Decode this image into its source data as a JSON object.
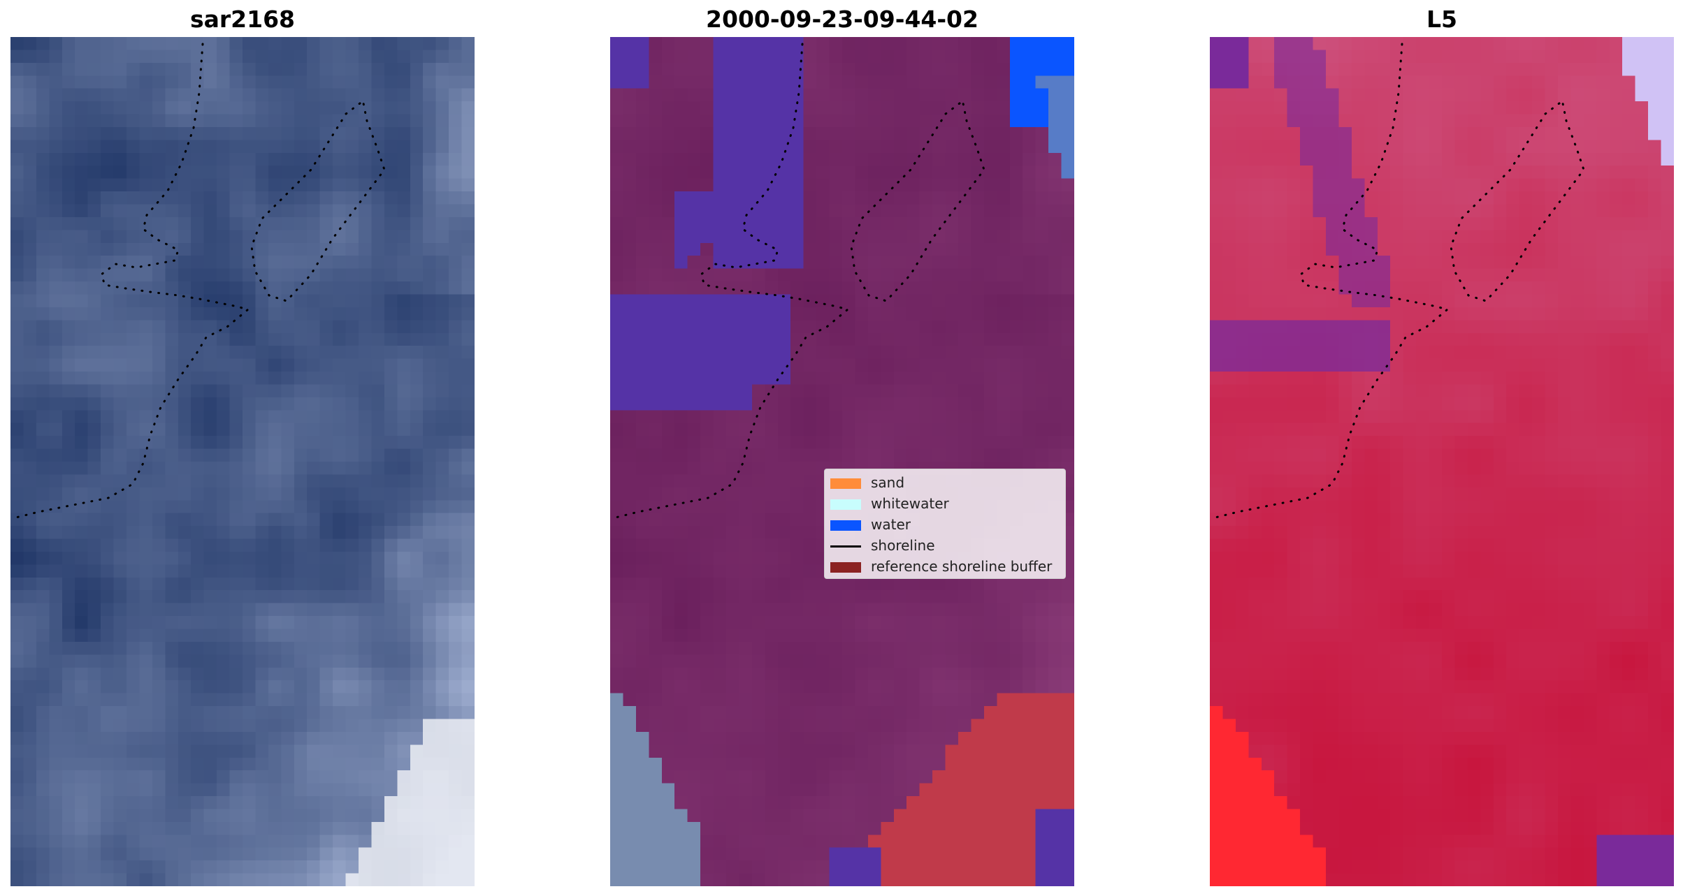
{
  "titles": {
    "left": "sar2168",
    "middle": "2000-09-23-09-44-02",
    "right": "L5"
  },
  "legend": {
    "items": [
      {
        "label": "sand",
        "color": "#ff8c3a",
        "kind": "patch"
      },
      {
        "label": "whitewater",
        "color": "#c8fdfd",
        "kind": "patch"
      },
      {
        "label": "water",
        "color": "#0a55ff",
        "kind": "patch"
      },
      {
        "label": "shoreline",
        "color": "#000000",
        "kind": "line"
      },
      {
        "label": "reference shoreline buffer",
        "color": "#8b2222",
        "kind": "patch"
      }
    ]
  },
  "colors": {
    "rgb_base": "#1f3566",
    "rgb_bright": "#aebcdc",
    "classified_base": "#6a1f5c",
    "class_purple": "#5533a6",
    "buffer_red": "#c03a4a",
    "index_base": "#c8163e",
    "index_purple": "#7a2a9a",
    "shoreline": "#000000"
  }
}
